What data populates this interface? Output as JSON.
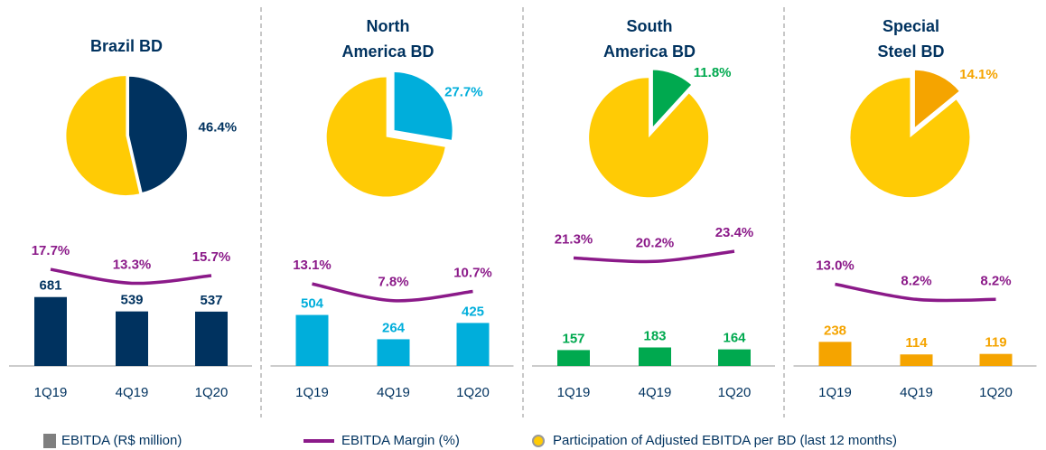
{
  "chart_data": [
    {
      "type": "combo",
      "title": [
        "Brazil BD"
      ],
      "color": "#00325f",
      "exploded": false,
      "pie": {
        "values": [
          46.4
        ],
        "value_labels": [
          "46.4%"
        ]
      },
      "categories": [
        "1Q19",
        "4Q19",
        "1Q20"
      ],
      "series": [
        {
          "values": [
            681,
            539,
            537
          ]
        },
        {
          "color": "#8b1a89",
          "values": [
            17.7,
            13.3,
            15.7
          ],
          "value_labels": [
            "17.7%",
            "13.3%",
            "15.7%"
          ]
        }
      ]
    },
    {
      "type": "combo",
      "title": [
        "North",
        "America BD"
      ],
      "color": "#00aedb",
      "exploded": true,
      "pie": {
        "values": [
          27.7
        ],
        "value_labels": [
          "27.7%"
        ]
      },
      "categories": [
        "1Q19",
        "4Q19",
        "1Q20"
      ],
      "series": [
        {
          "values": [
            504,
            264,
            425
          ]
        },
        {
          "color": "#8b1a89",
          "values": [
            13.1,
            7.8,
            10.7
          ],
          "value_labels": [
            "13.1%",
            "7.8%",
            "10.7%"
          ]
        }
      ]
    },
    {
      "type": "combo",
      "title": [
        "South",
        "America BD"
      ],
      "color": "#00a94f",
      "exploded": true,
      "pie": {
        "values": [
          11.8
        ],
        "value_labels": [
          "11.8%"
        ]
      },
      "categories": [
        "1Q19",
        "4Q19",
        "1Q20"
      ],
      "series": [
        {
          "values": [
            157,
            183,
            164
          ]
        },
        {
          "color": "#8b1a89",
          "values": [
            21.3,
            20.2,
            23.4
          ],
          "value_labels": [
            "21.3%",
            "20.2%",
            "23.4%"
          ]
        }
      ]
    },
    {
      "type": "combo",
      "title": [
        "Special",
        "Steel BD"
      ],
      "color": "#f5a400",
      "exploded": true,
      "pie": {
        "values": [
          14.1
        ],
        "value_labels": [
          "14.1%"
        ]
      },
      "categories": [
        "1Q19",
        "4Q19",
        "1Q20"
      ],
      "series": [
        {
          "values": [
            238,
            114,
            119
          ]
        },
        {
          "color": "#8b1a89",
          "values": [
            13.0,
            8.2,
            8.2
          ],
          "value_labels": [
            "13.0%",
            "8.2%",
            "8.2%"
          ]
        }
      ]
    }
  ],
  "legend": [
    {
      "name": "EBITDA (R$ million)",
      "color": "#7f7f7f"
    },
    {
      "name": "EBITDA Margin (%)",
      "color": "#8b1a89"
    },
    {
      "name": "Participation of Adjusted EBITDA per BD (last 12 months)",
      "color": "#ffcb05"
    }
  ]
}
